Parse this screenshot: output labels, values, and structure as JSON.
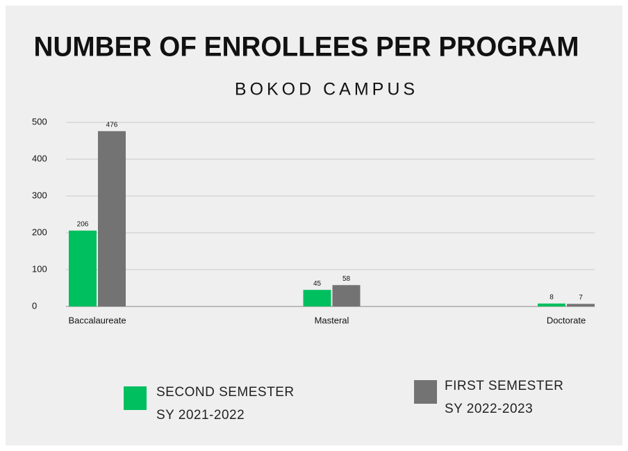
{
  "chart_data": {
    "type": "bar",
    "title": "NUMBER OF ENROLLEES PER PROGRAM",
    "subtitle": "BOKOD CAMPUS",
    "categories": [
      "Baccalaureate",
      "Masteral",
      "Doctorate"
    ],
    "series": [
      {
        "name": "SECOND SEMESTER SY 2021-2022",
        "color": "#00bf5f",
        "values": [
          206,
          45,
          8
        ]
      },
      {
        "name": "FIRST SEMESTER SY 2022-2023",
        "color": "#737373",
        "values": [
          476,
          58,
          7
        ]
      }
    ],
    "ylim": [
      0,
      500
    ],
    "yticks": [
      0,
      100,
      200,
      300,
      400,
      500
    ],
    "grid": true
  }
}
